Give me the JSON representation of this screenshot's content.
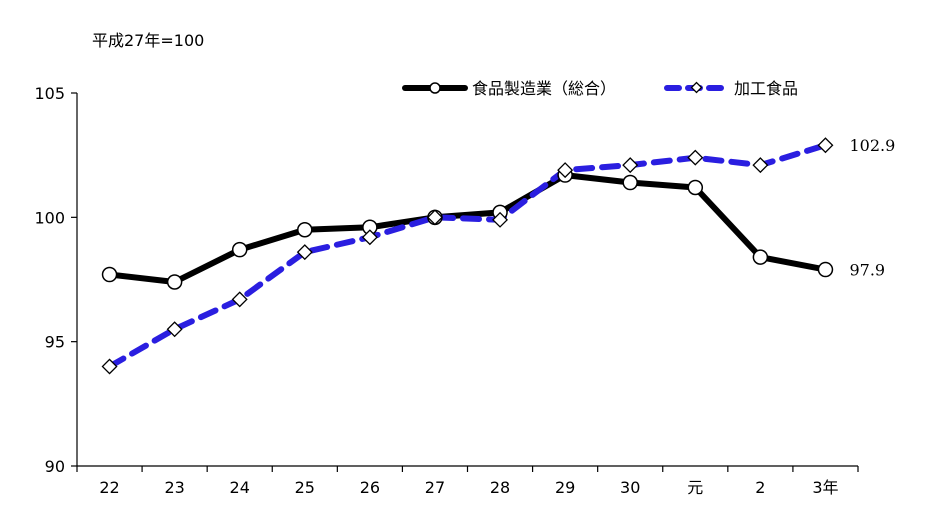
{
  "chart_data": {
    "type": "line",
    "unit_note": "平成27年=100",
    "categories": [
      "22",
      "23",
      "24",
      "25",
      "26",
      "27",
      "28",
      "29",
      "30",
      "元",
      "2",
      "3年"
    ],
    "ylim": [
      90,
      105
    ],
    "y_ticks": [
      "90",
      "95",
      "100",
      "105"
    ],
    "grid": false,
    "legend_position": "top-right",
    "series": [
      {
        "name": "食品製造業（総合）",
        "values": [
          97.7,
          97.4,
          98.7,
          99.5,
          99.6,
          100.0,
          100.2,
          101.7,
          101.4,
          101.2,
          98.4,
          97.9
        ],
        "end_label": "97.9",
        "color": "#000000",
        "line_style": "solid",
        "marker": "circle"
      },
      {
        "name": "加工食品",
        "values": [
          94.0,
          95.5,
          96.7,
          98.6,
          99.2,
          100.0,
          99.9,
          101.9,
          102.1,
          102.4,
          102.1,
          102.9
        ],
        "end_label": "102.9",
        "color": "#2a1ee0",
        "line_style": "dashed",
        "marker": "diamond"
      }
    ]
  }
}
